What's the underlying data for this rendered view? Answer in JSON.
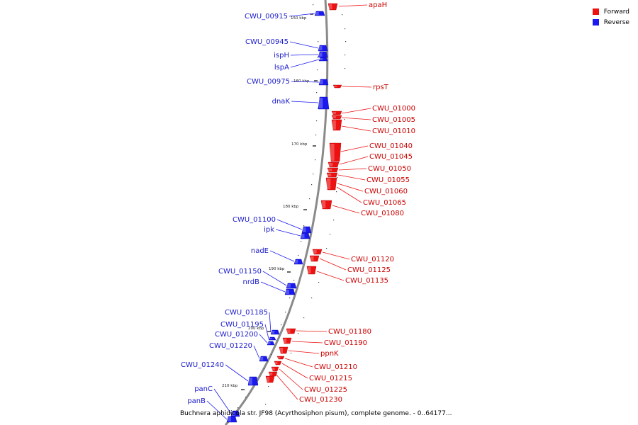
{
  "legend": {
    "forward_label": "Forward",
    "reverse_label": "Reverse",
    "forward_color": "#ee1111",
    "reverse_color": "#1a1aee"
  },
  "caption": "Buchnera aphidicola str. JF98 (Acyrthosiphon pisum), complete genome. - 0..64177...",
  "ticks": [
    "150 kbp",
    "160 kbp",
    "170 kbp",
    "180 kbp",
    "190 kbp",
    "200 kbp",
    "210 kbp"
  ],
  "genes_forward": [
    "apaH",
    "rpsT",
    "CWU_01000",
    "CWU_01005",
    "CWU_01010",
    "CWU_01040",
    "CWU_01045",
    "CWU_01050",
    "CWU_01055",
    "CWU_01060",
    "CWU_01065",
    "CWU_01080",
    "CWU_01120",
    "CWU_01125",
    "CWU_01135",
    "CWU_01180",
    "CWU_01190",
    "ppnK",
    "CWU_01210",
    "CWU_01215",
    "CWU_01225",
    "CWU_01230"
  ],
  "genes_reverse": [
    "CWU_00915",
    "CWU_00945",
    "ispH",
    "lspA",
    "CWU_00975",
    "dnaK",
    "CWU_01100",
    "ipk",
    "nadE",
    "CWU_01150",
    "nrdB",
    "CWU_01185",
    "CWU_01195",
    "CWU_01200",
    "CWU_01220",
    "CWU_01240",
    "panC",
    "panB"
  ]
}
